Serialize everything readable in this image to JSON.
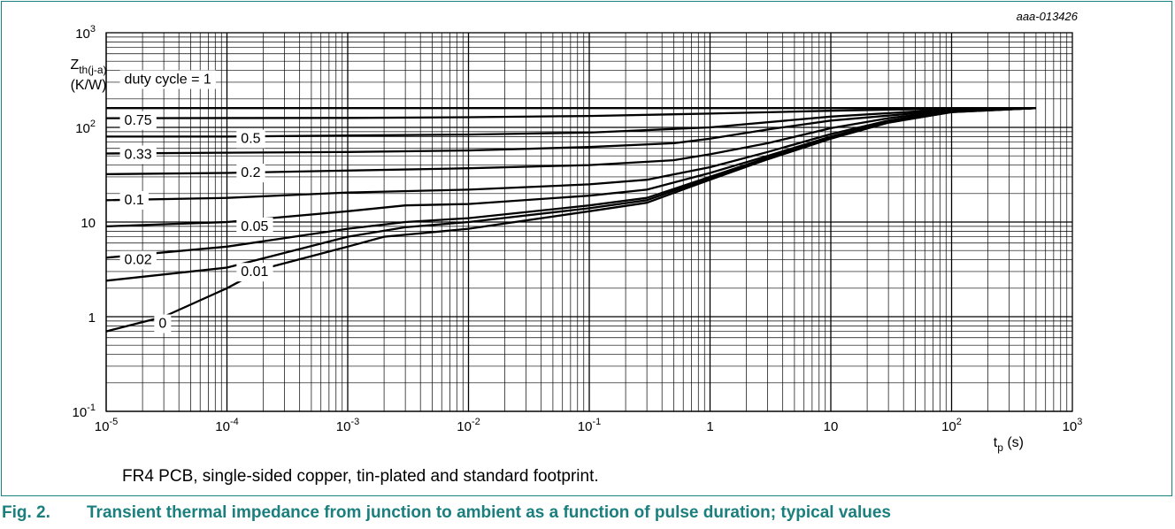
{
  "figure_id": "aaa-013426",
  "note": "FR4 PCB, single-sided copper, tin-plated and standard footprint.",
  "caption": {
    "number": "Fig. 2.",
    "text": "Transient thermal impedance from junction to ambient as a function of pulse duration; typical values"
  },
  "colors": {
    "frame": "#19847f",
    "caption": "#1a7f7d",
    "curve": "#000000",
    "grid": "#000000"
  },
  "chart_data": {
    "type": "line",
    "xscale": "log",
    "yscale": "log",
    "xlim": [
      1e-05,
      1000
    ],
    "ylim": [
      0.1,
      1000
    ],
    "grid": true,
    "legend": "none",
    "ylabel_main": "Z",
    "ylabel_sub": "th(j-a)",
    "ylabel_unit": "(K/W)",
    "xlabel_main": "t",
    "xlabel_sub": "p",
    "xlabel_unit": " (s)",
    "x_ticks": [
      {
        "value": 1e-05,
        "base": "10",
        "exp": "-5"
      },
      {
        "value": 0.0001,
        "base": "10",
        "exp": "-4"
      },
      {
        "value": 0.001,
        "base": "10",
        "exp": "-3"
      },
      {
        "value": 0.01,
        "base": "10",
        "exp": "-2"
      },
      {
        "value": 0.1,
        "base": "10",
        "exp": "-1"
      },
      {
        "value": 1,
        "base": "1",
        "exp": ""
      },
      {
        "value": 10,
        "base": "10",
        "exp": ""
      },
      {
        "value": 100,
        "base": "10",
        "exp": "2"
      },
      {
        "value": 1000,
        "base": "10",
        "exp": "3"
      }
    ],
    "y_ticks": [
      {
        "value": 0.1,
        "base": "10",
        "exp": "-1"
      },
      {
        "value": 1,
        "base": "1",
        "exp": ""
      },
      {
        "value": 10,
        "base": "10",
        "exp": ""
      },
      {
        "value": 100,
        "base": "10",
        "exp": "2"
      },
      {
        "value": 1000,
        "base": "10",
        "exp": "3"
      }
    ],
    "series": [
      {
        "label": "duty cycle = 1",
        "label_at": [
          1.3e-05,
          330
        ],
        "points": [
          [
            1e-05,
            160
          ],
          [
            0.1,
            160
          ],
          [
            10,
            160
          ],
          [
            100,
            160
          ],
          [
            500,
            160
          ]
        ]
      },
      {
        "label": "0.75",
        "label_at": [
          1.3e-05,
          122
        ],
        "points": [
          [
            1e-05,
            125
          ],
          [
            0.001,
            126
          ],
          [
            0.01,
            128
          ],
          [
            0.1,
            132
          ],
          [
            1,
            140
          ],
          [
            10,
            150
          ],
          [
            100,
            158
          ],
          [
            500,
            160
          ]
        ]
      },
      {
        "label": "0.5",
        "label_at": [
          0.00012,
          78
        ],
        "points": [
          [
            1e-05,
            80
          ],
          [
            0.0001,
            80
          ],
          [
            0.001,
            82
          ],
          [
            0.01,
            84
          ],
          [
            0.1,
            88
          ],
          [
            1,
            100
          ],
          [
            10,
            130
          ],
          [
            100,
            155
          ],
          [
            500,
            160
          ]
        ]
      },
      {
        "label": "0.33",
        "label_at": [
          1.3e-05,
          53
        ],
        "points": [
          [
            1e-05,
            53
          ],
          [
            0.0001,
            54
          ],
          [
            0.001,
            55
          ],
          [
            0.01,
            57
          ],
          [
            0.1,
            62
          ],
          [
            0.5,
            68
          ],
          [
            1,
            76
          ],
          [
            3,
            95
          ],
          [
            10,
            118
          ],
          [
            100,
            152
          ],
          [
            500,
            160
          ]
        ]
      },
      {
        "label": "0.2",
        "label_at": [
          0.00012,
          34
        ],
        "points": [
          [
            1e-05,
            32
          ],
          [
            0.0001,
            33
          ],
          [
            0.001,
            35
          ],
          [
            0.01,
            37
          ],
          [
            0.1,
            40
          ],
          [
            0.5,
            45
          ],
          [
            1,
            52
          ],
          [
            3,
            68
          ],
          [
            10,
            98
          ],
          [
            30,
            125
          ],
          [
            100,
            150
          ],
          [
            500,
            160
          ]
        ]
      },
      {
        "label": "0.1",
        "label_at": [
          1.3e-05,
          17.5
        ],
        "points": [
          [
            1e-05,
            17
          ],
          [
            0.0001,
            18
          ],
          [
            0.001,
            20.5
          ],
          [
            0.01,
            22
          ],
          [
            0.1,
            25
          ],
          [
            0.3,
            28
          ],
          [
            1,
            38
          ],
          [
            3,
            55
          ],
          [
            10,
            85
          ],
          [
            30,
            118
          ],
          [
            100,
            148
          ],
          [
            500,
            160
          ]
        ]
      },
      {
        "label": "0.05",
        "label_at": [
          0.00012,
          9.2
        ],
        "points": [
          [
            1e-05,
            9
          ],
          [
            0.0001,
            10
          ],
          [
            0.001,
            13
          ],
          [
            0.003,
            15
          ],
          [
            0.01,
            15.5
          ],
          [
            0.1,
            19
          ],
          [
            0.3,
            22
          ],
          [
            1,
            33
          ],
          [
            3,
            50
          ],
          [
            10,
            80
          ],
          [
            30,
            115
          ],
          [
            100,
            147
          ],
          [
            500,
            160
          ]
        ]
      },
      {
        "label": "0.02",
        "label_at": [
          1.3e-05,
          4.1
        ],
        "points": [
          [
            1e-05,
            4.2
          ],
          [
            0.0001,
            5.5
          ],
          [
            0.001,
            8.5
          ],
          [
            0.003,
            10
          ],
          [
            0.01,
            11
          ],
          [
            0.1,
            15
          ],
          [
            0.3,
            18
          ],
          [
            1,
            30
          ],
          [
            3,
            48
          ],
          [
            10,
            78
          ],
          [
            30,
            114
          ],
          [
            100,
            146
          ],
          [
            500,
            160
          ]
        ]
      },
      {
        "label": "0.01",
        "label_at": [
          0.00012,
          3.05
        ],
        "points": [
          [
            1e-05,
            2.4
          ],
          [
            0.0001,
            3.3
          ],
          [
            0.001,
            7
          ],
          [
            0.003,
            8.8
          ],
          [
            0.01,
            10
          ],
          [
            0.1,
            14
          ],
          [
            0.3,
            17
          ],
          [
            1,
            29
          ],
          [
            3,
            47
          ],
          [
            10,
            77
          ],
          [
            30,
            113
          ],
          [
            100,
            145
          ],
          [
            500,
            160
          ]
        ]
      },
      {
        "label": "0",
        "label_at": [
          2.5e-05,
          0.87
        ],
        "points": [
          [
            1e-05,
            0.7
          ],
          [
            3e-05,
            1
          ],
          [
            0.0001,
            2
          ],
          [
            0.0002,
            3.2
          ],
          [
            0.001,
            5.5
          ],
          [
            0.002,
            7
          ],
          [
            0.01,
            8.5
          ],
          [
            0.1,
            13
          ],
          [
            0.3,
            16
          ],
          [
            1,
            28
          ],
          [
            3,
            46
          ],
          [
            10,
            76
          ],
          [
            30,
            112
          ],
          [
            100,
            145
          ],
          [
            500,
            160
          ]
        ]
      }
    ]
  }
}
